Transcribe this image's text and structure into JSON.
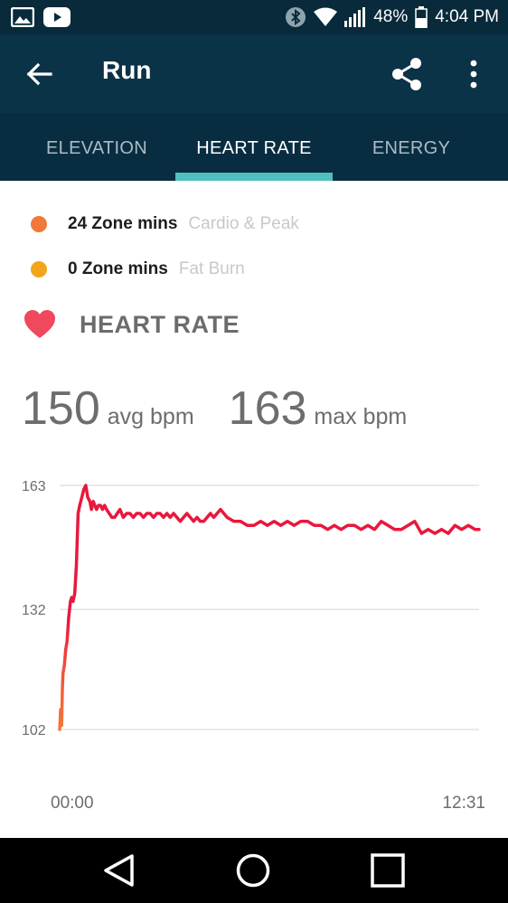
{
  "status_bar": {
    "battery": "48%",
    "time": "4:04 PM",
    "icons": [
      "gallery-icon",
      "youtube-icon",
      "bluetooth-icon",
      "wifi-icon",
      "signal-icon",
      "battery-icon"
    ]
  },
  "app_bar": {
    "title": "Run",
    "icons": [
      "back-arrow-icon",
      "share-icon",
      "more-vert-icon"
    ]
  },
  "tabs": [
    {
      "label": "ELEVATION",
      "active": false
    },
    {
      "label": "HEART RATE",
      "active": true
    },
    {
      "label": "ENERGY",
      "active": false
    }
  ],
  "zones": [
    {
      "value": "24 Zone mins",
      "label": "Cardio & Peak",
      "color": "#f2793a"
    },
    {
      "value": "0 Zone mins",
      "label": "Fat Burn",
      "color": "#f0a51c"
    }
  ],
  "heart_rate": {
    "title": "HEART RATE",
    "avg_value": "150",
    "avg_unit": "avg bpm",
    "max_value": "163",
    "max_unit": "max bpm"
  },
  "colors": {
    "header": "#0b3347",
    "accent": "#4fc0bd",
    "line_high": "#e8183d",
    "line_low": "#f2793a",
    "heart": "#f0485c"
  },
  "chart_data": {
    "type": "line",
    "y_ticks": [
      "163",
      "132",
      "102"
    ],
    "ylim": [
      102,
      163
    ],
    "x_ticks": [
      "00:00",
      "12:31"
    ],
    "x_range_minutes": [
      0,
      12.52
    ],
    "grid": true,
    "series": [
      {
        "x": [
          0,
          0.03,
          0.06,
          0.08,
          0.1,
          0.14,
          0.18,
          0.22,
          0.27,
          0.32,
          0.36,
          0.4,
          0.45,
          0.5,
          0.55,
          0.6,
          0.66,
          0.72,
          0.78,
          0.84,
          0.9,
          0.95,
          1.0,
          1.05,
          1.1,
          1.16,
          1.22,
          1.28,
          1.34,
          1.4,
          1.48,
          1.56,
          1.64,
          1.72,
          1.8,
          1.9,
          2.0,
          2.1,
          2.2,
          2.3,
          2.4,
          2.5,
          2.6,
          2.7,
          2.8,
          2.9,
          3.0,
          3.1,
          3.2,
          3.3,
          3.4,
          3.5,
          3.6,
          3.7,
          3.8,
          3.9,
          4.0,
          4.1,
          4.2,
          4.3,
          4.4,
          4.5,
          4.6,
          4.7,
          4.8,
          4.9,
          5.0,
          5.2,
          5.4,
          5.6,
          5.8,
          6.0,
          6.2,
          6.4,
          6.6,
          6.8,
          7.0,
          7.2,
          7.4,
          7.6,
          7.8,
          8.0,
          8.2,
          8.4,
          8.6,
          8.8,
          9.0,
          9.2,
          9.4,
          9.6,
          9.8,
          10.0,
          10.2,
          10.4,
          10.6,
          10.8,
          11.0,
          11.2,
          11.4,
          11.6,
          11.8,
          12.0,
          12.2,
          12.4,
          12.52
        ],
        "y": [
          102,
          107,
          103,
          112,
          116,
          118,
          122,
          124,
          130,
          134,
          135,
          134,
          136,
          143,
          156,
          158,
          160,
          162,
          163,
          160,
          159,
          157,
          159,
          158,
          157,
          158,
          158,
          157,
          158,
          157,
          156,
          155,
          155,
          156,
          157,
          155,
          156,
          156,
          155,
          156,
          156,
          155,
          156,
          156,
          155,
          156,
          156,
          155,
          156,
          155,
          156,
          155,
          154,
          155,
          156,
          155,
          154,
          155,
          154,
          154,
          155,
          156,
          155,
          156,
          157,
          156,
          155,
          154,
          154,
          153,
          153,
          154,
          153,
          154,
          153,
          154,
          153,
          154,
          154,
          153,
          153,
          152,
          153,
          152,
          153,
          153,
          152,
          153,
          152,
          154,
          153,
          152,
          152,
          153,
          154,
          151,
          152,
          151,
          152,
          151,
          153,
          152,
          153,
          152,
          152
        ]
      }
    ]
  },
  "nav_bar": {
    "icons": [
      "back-triangle-icon",
      "home-circle-icon",
      "recents-square-icon"
    ]
  }
}
